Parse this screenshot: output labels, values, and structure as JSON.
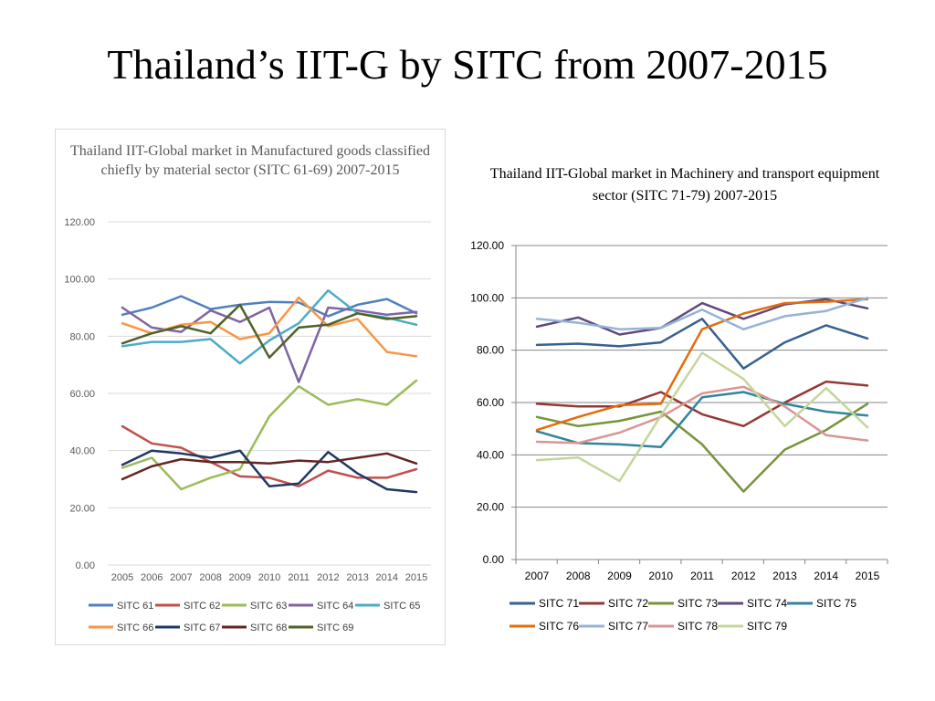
{
  "slide": {
    "title": "Thailand’s IIT-G by SITC from 2007-2015"
  },
  "chart_data": [
    {
      "type": "line",
      "title": "Thailand IIT-Global market in Manufactured goods classified chiefly by material sector (SITC 61-69) 2007-2015",
      "categories": [
        "2005",
        "2006",
        "2007",
        "2008",
        "2009",
        "2010",
        "2011",
        "2012",
        "2013",
        "2014",
        "2015"
      ],
      "ylim": [
        0,
        120
      ],
      "yticks": [
        "0.00",
        "20.00",
        "40.00",
        "60.00",
        "80.00",
        "100.00",
        "120.00"
      ],
      "grid": true,
      "legend": "bottom",
      "series": [
        {
          "name": "SITC 61",
          "color": "#4f81bd",
          "values": [
            87.5,
            90,
            94,
            89.5,
            91,
            92,
            91.8,
            87,
            91,
            93,
            88
          ]
        },
        {
          "name": "SITC 62",
          "color": "#c0504d",
          "values": [
            48.5,
            42.5,
            41,
            36,
            31,
            30.5,
            27.5,
            33,
            30.5,
            30.5,
            33.5
          ]
        },
        {
          "name": "SITC 63",
          "color": "#9bbb59",
          "values": [
            34,
            37.5,
            26.5,
            30.5,
            33.5,
            52,
            62.5,
            56,
            58,
            56,
            64.5
          ]
        },
        {
          "name": "SITC 64",
          "color": "#8064a2",
          "values": [
            90,
            83,
            81.5,
            89,
            85,
            90,
            64,
            90,
            89,
            87.5,
            88.5
          ]
        },
        {
          "name": "SITC 65",
          "color": "#4bacc6",
          "values": [
            76.5,
            78,
            78,
            79,
            70.5,
            78.5,
            84.5,
            96,
            88,
            86.5,
            84
          ]
        },
        {
          "name": "SITC 66",
          "color": "#f79646",
          "values": [
            84.5,
            81,
            84,
            85,
            79,
            81,
            93.5,
            83.5,
            86,
            74.5,
            73
          ]
        },
        {
          "name": "SITC 67",
          "color": "#1f3864",
          "values": [
            35,
            40,
            39,
            37.5,
            40,
            27.5,
            28.5,
            39.5,
            32,
            26.5,
            25.5
          ]
        },
        {
          "name": "SITC 68",
          "color": "#632523",
          "values": [
            30,
            34.5,
            37,
            36,
            36,
            35.5,
            36.5,
            36,
            37.5,
            39,
            35.5
          ]
        },
        {
          "name": "SITC 69",
          "color": "#4f6228",
          "values": [
            77.5,
            81,
            83.5,
            81,
            91,
            72.5,
            83,
            84,
            88,
            86,
            87
          ]
        }
      ]
    },
    {
      "type": "line",
      "title": "Thailand IIT-Global  market in Machinery and transport equipment sector (SITC 71-79) 2007-2015",
      "categories": [
        "2007",
        "2008",
        "2009",
        "2010",
        "2011",
        "2012",
        "2013",
        "2014",
        "2015"
      ],
      "ylim": [
        0,
        120
      ],
      "yticks": [
        "0.00",
        "20.00",
        "40.00",
        "60.00",
        "80.00",
        "100.00",
        "120.00"
      ],
      "grid": true,
      "legend": "bottom",
      "series": [
        {
          "name": "SITC 71",
          "color": "#376092",
          "values": [
            82,
            82.5,
            81.5,
            83,
            92,
            73,
            83,
            89.5,
            84.5
          ]
        },
        {
          "name": "SITC 72",
          "color": "#953735",
          "values": [
            59.5,
            58.5,
            58.5,
            64,
            55.5,
            51,
            60,
            68,
            66.5
          ]
        },
        {
          "name": "SITC 73",
          "color": "#77933c",
          "values": [
            54.5,
            51,
            53,
            56.5,
            44,
            26,
            42,
            49.5,
            59.5
          ]
        },
        {
          "name": "SITC 74",
          "color": "#604a7b",
          "values": [
            89,
            92.5,
            86,
            88.5,
            98,
            92,
            97.5,
            99.5,
            96
          ]
        },
        {
          "name": "SITC 75",
          "color": "#31859c",
          "values": [
            49,
            44.5,
            44,
            43,
            62,
            64,
            59.5,
            56.5,
            55
          ]
        },
        {
          "name": "SITC 76",
          "color": "#e46c0a",
          "values": [
            49.5,
            54.5,
            59,
            59.5,
            88,
            94,
            98,
            98.5,
            99.5
          ]
        },
        {
          "name": "SITC 77",
          "color": "#95b3d7",
          "values": [
            92,
            90.5,
            88,
            88.5,
            95.5,
            88,
            93,
            95,
            100
          ]
        },
        {
          "name": "SITC 78",
          "color": "#d99694",
          "values": [
            45,
            44.5,
            48.5,
            54.5,
            63.5,
            66,
            58.5,
            47.5,
            45.5
          ]
        },
        {
          "name": "SITC 79",
          "color": "#c3d69b",
          "values": [
            38,
            39,
            30,
            55,
            79,
            69,
            51,
            65.5,
            50.5
          ]
        }
      ]
    }
  ]
}
